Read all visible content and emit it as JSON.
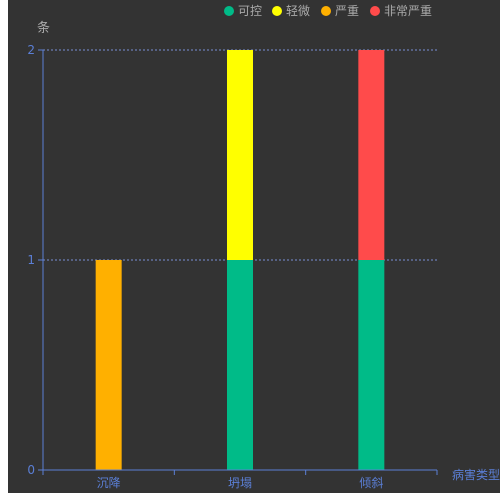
{
  "chart_data": {
    "type": "bar",
    "stacked": true,
    "title": "",
    "xlabel": "病害类型",
    "ylabel": "条",
    "categories": [
      "沉降",
      "坍塌",
      "倾斜"
    ],
    "ylim": [
      0,
      2
    ],
    "yticks": [
      "0",
      "1",
      "2"
    ],
    "grid": true,
    "legend_position": "top-right",
    "series": [
      {
        "name": "可控",
        "color": "#00bb88",
        "values": [
          0,
          1,
          1
        ]
      },
      {
        "name": "轻微",
        "color": "#ffff00",
        "values": [
          0,
          1,
          0
        ]
      },
      {
        "name": "严重",
        "color": "#ffb000",
        "values": [
          1,
          0,
          0
        ]
      },
      {
        "name": "非常严重",
        "color": "#ff4b4b",
        "values": [
          0,
          0,
          1
        ]
      }
    ]
  },
  "colors": {
    "background": "#333333",
    "axis": "#5b7fd6",
    "grid": "#7a8fd6",
    "label": "#aaaaaa"
  }
}
